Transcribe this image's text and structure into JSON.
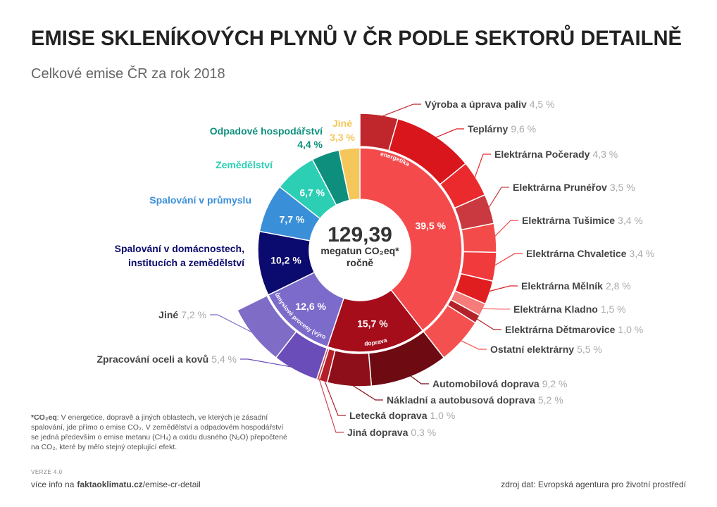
{
  "chart_data": {
    "type": "sunburst",
    "title": "EMISE SKLENÍKOVÝCH PLYNŮ V ČR PODLE SEKTORŮ DETAILNĚ",
    "subtitle": "Celkové emise ČR za rok 2018",
    "total": 129.39,
    "total_label": "129,39",
    "total_unit": "megatun CO₂eq*",
    "total_period": "ročně",
    "sectors": [
      {
        "name": "energetika",
        "value": 39.5,
        "value_label": "39,5 %",
        "color": "#f44a4c",
        "children": [
          {
            "name": "Výroba a úprava paliv",
            "value": 4.5,
            "value_label": "4,5 %",
            "color": "#c0272d"
          },
          {
            "name": "Teplárny",
            "value": 9.6,
            "value_label": "9,6 %",
            "color": "#d9161c"
          },
          {
            "name": "Elektrárna Počerady",
            "value": 4.3,
            "value_label": "4,3 %",
            "color": "#ea2a2c"
          },
          {
            "name": "Elektrárna Prunéřov",
            "value": 3.5,
            "value_label": "3,5 %",
            "color": "#c9393f"
          },
          {
            "name": "Elektrárna Tušimice",
            "value": 3.4,
            "value_label": "3,4 %",
            "color": "#f34a4a"
          },
          {
            "name": "Elektrárna Chvaletice",
            "value": 3.4,
            "value_label": "3,4 %",
            "color": "#f03a3c"
          },
          {
            "name": "Elektrárna Mělník",
            "value": 2.8,
            "value_label": "2,8 %",
            "color": "#e01e20"
          },
          {
            "name": "Elektrárna Kladno",
            "value": 1.5,
            "value_label": "1,5 %",
            "color": "#f67b7b"
          },
          {
            "name": "Elektrárna Dětmarovice",
            "value": 1.0,
            "value_label": "1,0 %",
            "color": "#b3222a"
          },
          {
            "name": "Ostatní elektrárny",
            "value": 5.5,
            "value_label": "5,5 %",
            "color": "#f55050"
          }
        ]
      },
      {
        "name": "doprava",
        "value": 15.7,
        "value_label": "15,7 %",
        "color": "#a50d1b",
        "children": [
          {
            "name": "Automobilová doprava",
            "value": 9.2,
            "value_label": "9,2 %",
            "color": "#6d0a12"
          },
          {
            "name": "Nákladní a autobusová doprava",
            "value": 5.2,
            "value_label": "5,2 %",
            "color": "#8e0f1a"
          },
          {
            "name": "Letecká doprava",
            "value": 1.0,
            "value_label": "1,0 %",
            "color": "#b51f2a"
          },
          {
            "name": "Jiná doprava",
            "value": 0.3,
            "value_label": "0,3 %",
            "color": "#c94a50"
          }
        ]
      },
      {
        "name": "průmyslové procesy (výroba)",
        "value": 12.6,
        "value_label": "12,6 %",
        "color": "#7c6bcb",
        "children": [
          {
            "name": "Zpracování oceli a kovů",
            "value": 5.4,
            "value_label": "5,4 %",
            "color": "#6a4db8"
          },
          {
            "name": "Jiné",
            "value": 7.2,
            "value_label": "7,2 %",
            "color": "#7f6cc6"
          }
        ]
      },
      {
        "name": "Spalování v domácnostech, institucích a zemědělství",
        "value": 10.2,
        "value_label": "10,2 %",
        "color": "#0b0a6e"
      },
      {
        "name": "Spalování v průmyslu",
        "value": 7.7,
        "value_label": "7,7 %",
        "color": "#3a8fd9"
      },
      {
        "name": "Zemědělství",
        "value": 6.7,
        "value_label": "6,7 %",
        "color": "#2ccfb4"
      },
      {
        "name": "Odpadové hospodářství",
        "value": 4.4,
        "value_label": "4,4 %",
        "color": "#0e8f7e"
      },
      {
        "name": "Jiné",
        "value": 3.3,
        "value_label": "3,3 %",
        "color": "#f5c75a"
      }
    ]
  },
  "footnote": {
    "term": "*CO₂eq",
    "text": ": V energetice, dopravě a jiných oblastech, ve kterých je zásadní spalování, jde přímo o emise CO₂. V zemědělství a odpadovém hospodářství se jedná především o emise metanu (CH₄) a oxidu dusného (N₂O) přepočtené na CO₂, které by mělo stejný oteplující efekt."
  },
  "footer": {
    "version": "VERZE 4.0",
    "info_prefix": "více info na",
    "info_site": "faktaoklimatu.cz",
    "info_path": "/emise-cr-detail",
    "source": "zdroj dat: Evropská agentura pro životní prostředí"
  }
}
